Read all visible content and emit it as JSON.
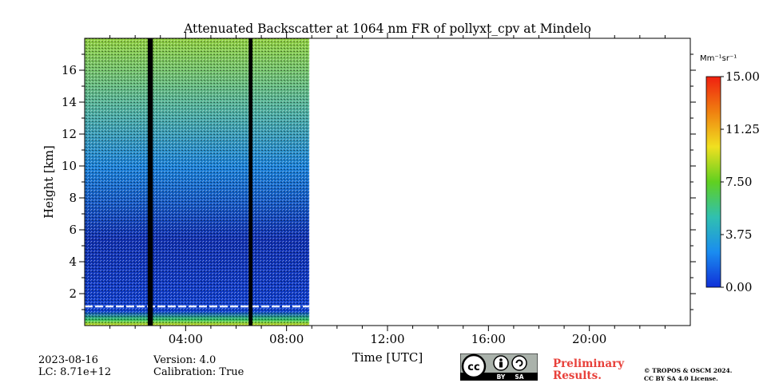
{
  "chart_data": {
    "type": "heatmap",
    "title": "Attenuated Backscatter at 1064 nm FR of pollyxt_cpv at Mindelo",
    "xlabel": "Time [UTC]",
    "ylabel": "Height [km]",
    "x_range_hours": [
      0,
      24
    ],
    "y_range_km": [
      0,
      18
    ],
    "x_ticks": [
      {
        "value": 4,
        "label": "04:00"
      },
      {
        "value": 8,
        "label": "08:00"
      },
      {
        "value": 12,
        "label": "12:00"
      },
      {
        "value": 16,
        "label": "16:00"
      },
      {
        "value": 20,
        "label": "20:00"
      }
    ],
    "y_ticks": [
      {
        "value": 2,
        "label": "2"
      },
      {
        "value": 4,
        "label": "4"
      },
      {
        "value": 6,
        "label": "6"
      },
      {
        "value": 8,
        "label": "8"
      },
      {
        "value": 10,
        "label": "10"
      },
      {
        "value": 12,
        "label": "12"
      },
      {
        "value": 14,
        "label": "14"
      },
      {
        "value": 16,
        "label": "16"
      }
    ],
    "data_coverage_hours": [
      0,
      8.9
    ],
    "data_gaps_hours": [
      [
        2.5,
        2.7
      ],
      [
        6.5,
        6.65
      ]
    ],
    "boundary_layer_top_km": 1.2,
    "colorbar": {
      "unit_label": "Mm⁻¹sr⁻¹",
      "range": [
        0,
        15
      ],
      "ticks": [
        {
          "value": 0,
          "label": "0.00"
        },
        {
          "value": 3.75,
          "label": "3.75"
        },
        {
          "value": 7.5,
          "label": "7.50"
        },
        {
          "value": 11.25,
          "label": "11.25"
        },
        {
          "value": 15,
          "label": "15.00"
        }
      ],
      "colors": [
        "#1030d8",
        "#1a8cf0",
        "#30c0b0",
        "#60d020",
        "#f0e020",
        "#f08010",
        "#f02010"
      ]
    }
  },
  "info": {
    "date": "2023-08-16",
    "lc": "LC: 8.71e+12",
    "version": "Version: 4.0",
    "calibration": "Calibration: True",
    "preliminary_line1": "Preliminary",
    "preliminary_line2": "Results.",
    "copyright_line1": "© TROPOS & OSCM 2024.",
    "copyright_line2": "CC BY SA 4.0 License."
  },
  "license_badge": {
    "icon": "cc-by-sa-icon",
    "by_label": "BY",
    "sa_label": "SA"
  }
}
